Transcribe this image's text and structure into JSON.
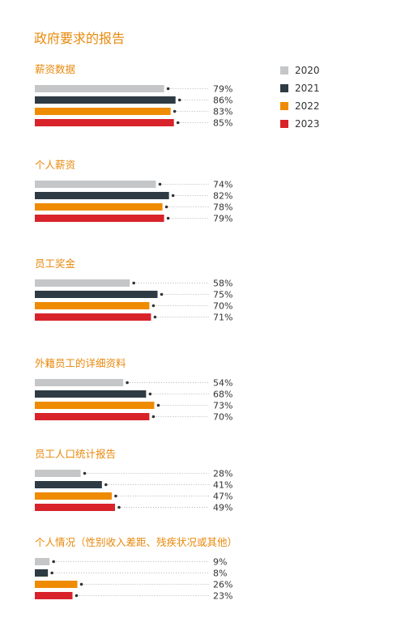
{
  "title": "政府要求的报告",
  "colors": {
    "accent": "#e8890c",
    "series": [
      "#c4c6c8",
      "#2e3b44",
      "#ef8b00",
      "#d8232a"
    ],
    "text": "#333333",
    "dots": "#b5b5b5"
  },
  "chart_data": {
    "type": "bar",
    "orientation": "horizontal",
    "unit": "%",
    "xlim": [
      0,
      100
    ],
    "legend_position": "top-right",
    "series_names": [
      "2020",
      "2021",
      "2022",
      "2023"
    ],
    "groups": [
      {
        "label": "薪资数据",
        "values": [
          79,
          86,
          83,
          85
        ]
      },
      {
        "label": "个人薪资",
        "values": [
          74,
          82,
          78,
          79
        ]
      },
      {
        "label": "员工奖金",
        "values": [
          58,
          75,
          70,
          71
        ]
      },
      {
        "label": "外籍员工的详细资料",
        "values": [
          54,
          68,
          73,
          70
        ]
      },
      {
        "label": "员工人口统计报告",
        "values": [
          28,
          41,
          47,
          49
        ]
      },
      {
        "label": "个人情况（性别收入差距、残疾状况或其他）",
        "values": [
          9,
          8,
          26,
          23
        ]
      }
    ]
  }
}
